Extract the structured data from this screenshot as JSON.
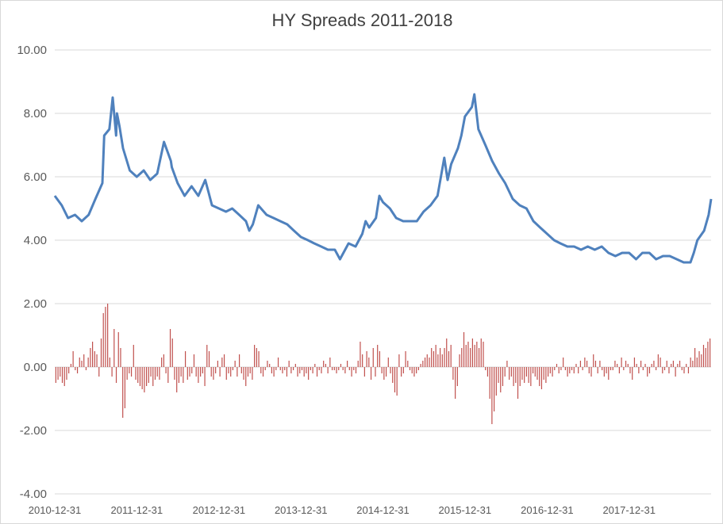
{
  "chart_data": {
    "type": "line",
    "title": "HY Spreads 2011-2018",
    "xlabel": "",
    "ylabel": "",
    "ylim": [
      -4,
      10
    ],
    "y_ticks": [
      "10.00",
      "8.00",
      "6.00",
      "4.00",
      "2.00",
      "0.00",
      "-2.00",
      "-4.00"
    ],
    "x_tick_labels": [
      "2010-12-31",
      "2011-12-31",
      "2012-12-31",
      "2013-12-31",
      "2014-12-31",
      "2015-12-31",
      "2016-12-31",
      "2017-12-31"
    ],
    "x_range": [
      "2010-12-31",
      "2018-12-31"
    ],
    "grid": "horizontal",
    "legend": "none",
    "colors": {
      "spread_line": "#4f81bd",
      "change_bars": "#c0504d",
      "grid": "#d9d9d9",
      "text": "#595959"
    },
    "series": [
      {
        "chart_type": "line",
        "x": [
          "2010-12-31",
          "2011-01-31",
          "2011-02-28",
          "2011-03-31",
          "2011-04-30",
          "2011-05-31",
          "2011-06-30",
          "2011-07-31",
          "2011-08-08",
          "2011-08-31",
          "2011-09-15",
          "2011-09-30",
          "2011-10-04",
          "2011-10-15",
          "2011-10-31",
          "2011-11-30",
          "2011-12-31",
          "2012-01-31",
          "2012-02-29",
          "2012-03-31",
          "2012-04-30",
          "2012-05-31",
          "2012-06-04",
          "2012-06-30",
          "2012-07-31",
          "2012-08-31",
          "2012-09-30",
          "2012-10-31",
          "2012-11-15",
          "2012-11-30",
          "2012-12-31",
          "2013-01-31",
          "2013-02-28",
          "2013-03-31",
          "2013-04-30",
          "2013-05-15",
          "2013-05-31",
          "2013-06-24",
          "2013-07-31",
          "2013-08-31",
          "2013-09-30",
          "2013-10-31",
          "2013-11-30",
          "2013-12-31",
          "2014-01-31",
          "2014-02-28",
          "2014-03-31",
          "2014-04-30",
          "2014-05-31",
          "2014-06-23",
          "2014-07-31",
          "2014-08-31",
          "2014-09-30",
          "2014-10-15",
          "2014-10-31",
          "2014-11-30",
          "2014-12-15",
          "2014-12-31",
          "2015-01-31",
          "2015-02-28",
          "2015-03-31",
          "2015-04-30",
          "2015-05-31",
          "2015-06-30",
          "2015-07-31",
          "2015-08-31",
          "2015-09-30",
          "2015-10-15",
          "2015-10-31",
          "2015-11-30",
          "2015-12-15",
          "2015-12-31",
          "2016-01-31",
          "2016-02-11",
          "2016-02-29",
          "2016-03-31",
          "2016-04-30",
          "2016-05-31",
          "2016-06-27",
          "2016-07-31",
          "2016-08-31",
          "2016-09-30",
          "2016-10-31",
          "2016-11-30",
          "2016-12-31",
          "2017-01-31",
          "2017-02-28",
          "2017-03-31",
          "2017-04-30",
          "2017-05-31",
          "2017-06-30",
          "2017-07-31",
          "2017-08-31",
          "2017-09-30",
          "2017-10-31",
          "2017-11-30",
          "2017-12-31",
          "2018-01-31",
          "2018-02-28",
          "2018-03-31",
          "2018-04-30",
          "2018-05-31",
          "2018-06-30",
          "2018-07-31",
          "2018-08-31",
          "2018-09-30",
          "2018-10-15",
          "2018-10-31",
          "2018-11-30",
          "2018-12-20",
          "2018-12-31"
        ],
        "values": [
          5.4,
          5.1,
          4.7,
          4.8,
          4.6,
          4.8,
          5.3,
          5.8,
          7.3,
          7.5,
          8.5,
          7.3,
          8.0,
          7.6,
          6.9,
          6.2,
          6.0,
          6.2,
          5.9,
          6.1,
          7.1,
          6.5,
          6.3,
          5.8,
          5.4,
          5.7,
          5.4,
          5.9,
          5.5,
          5.1,
          5.0,
          4.9,
          5.0,
          4.8,
          4.6,
          4.3,
          4.5,
          5.1,
          4.8,
          4.7,
          4.6,
          4.5,
          4.3,
          4.1,
          4.0,
          3.9,
          3.8,
          3.7,
          3.7,
          3.4,
          3.9,
          3.8,
          4.2,
          4.6,
          4.4,
          4.7,
          5.4,
          5.2,
          5.0,
          4.7,
          4.6,
          4.6,
          4.6,
          4.9,
          5.1,
          5.4,
          6.6,
          5.9,
          6.4,
          6.9,
          7.3,
          7.9,
          8.2,
          8.6,
          7.5,
          7.0,
          6.5,
          6.1,
          5.8,
          5.3,
          5.1,
          5.0,
          4.6,
          4.4,
          4.2,
          4.0,
          3.9,
          3.8,
          3.8,
          3.7,
          3.8,
          3.7,
          3.8,
          3.6,
          3.5,
          3.6,
          3.6,
          3.4,
          3.6,
          3.6,
          3.4,
          3.5,
          3.5,
          3.4,
          3.3,
          3.3,
          3.6,
          4.0,
          4.3,
          4.8,
          5.3
        ]
      },
      {
        "chart_type": "bar",
        "values": [
          -0.5,
          -0.4,
          -0.3,
          -0.5,
          -0.6,
          -0.4,
          -0.2,
          0.1,
          0.5,
          -0.1,
          -0.2,
          0.3,
          0.2,
          0.4,
          -0.1,
          0.3,
          0.6,
          0.8,
          0.5,
          0.4,
          -0.3,
          0.9,
          1.7,
          1.9,
          2.0,
          0.3,
          -0.3,
          1.2,
          -0.5,
          1.1,
          0.6,
          -1.6,
          -1.3,
          -0.4,
          -0.2,
          -0.3,
          0.7,
          -0.4,
          -0.5,
          -0.6,
          -0.7,
          -0.8,
          -0.6,
          -0.5,
          -0.3,
          -0.6,
          -0.4,
          -0.3,
          -0.4,
          0.3,
          0.4,
          -0.2,
          -0.5,
          1.2,
          0.9,
          -0.4,
          -0.8,
          -0.5,
          -0.3,
          -0.5,
          0.5,
          -0.4,
          -0.3,
          -0.2,
          0.4,
          -0.3,
          -0.5,
          -0.3,
          -0.2,
          -0.6,
          0.7,
          0.5,
          -0.3,
          -0.4,
          -0.2,
          0.2,
          -0.3,
          0.3,
          0.4,
          -0.4,
          -0.2,
          -0.3,
          -0.1,
          0.2,
          -0.3,
          0.4,
          -0.2,
          -0.4,
          -0.6,
          -0.3,
          -0.2,
          -0.4,
          0.7,
          0.6,
          0.5,
          -0.2,
          -0.3,
          -0.1,
          0.2,
          0.1,
          -0.2,
          -0.3,
          -0.1,
          0.3,
          -0.1,
          -0.2,
          -0.1,
          -0.3,
          0.2,
          -0.2,
          -0.1,
          0.1,
          -0.3,
          -0.2,
          -0.1,
          -0.3,
          -0.2,
          -0.4,
          -0.1,
          -0.2,
          0.1,
          -0.3,
          -0.1,
          -0.2,
          0.2,
          0.1,
          -0.2,
          0.3,
          -0.1,
          -0.1,
          -0.2,
          -0.1,
          0.1,
          -0.1,
          -0.2,
          0.2,
          -0.1,
          -0.3,
          -0.1,
          -0.2,
          0.2,
          0.8,
          0.4,
          -0.3,
          0.5,
          0.3,
          -0.4,
          0.6,
          -0.3,
          0.7,
          0.5,
          -0.2,
          -0.4,
          -0.3,
          0.3,
          -0.2,
          -0.5,
          -0.8,
          -0.9,
          0.4,
          -0.3,
          -0.2,
          0.5,
          0.2,
          -0.1,
          -0.2,
          -0.3,
          -0.2,
          -0.1,
          0.1,
          0.2,
          0.3,
          0.4,
          0.3,
          0.6,
          0.5,
          0.7,
          0.4,
          0.6,
          0.4,
          0.6,
          0.9,
          0.5,
          0.7,
          -0.4,
          -1.0,
          -0.6,
          0.4,
          0.6,
          1.1,
          0.7,
          0.8,
          0.6,
          0.9,
          0.7,
          0.8,
          0.6,
          0.9,
          0.8,
          -0.1,
          -0.3,
          -1.0,
          -1.8,
          -1.4,
          -0.9,
          -0.5,
          -0.8,
          -0.6,
          -0.3,
          0.2,
          -0.4,
          -0.3,
          -0.6,
          -0.5,
          -1.0,
          -0.6,
          -0.4,
          -0.5,
          -0.3,
          -0.5,
          -0.6,
          -0.2,
          -0.3,
          -0.4,
          -0.6,
          -0.7,
          -0.4,
          -0.5,
          -0.3,
          -0.2,
          -0.3,
          -0.1,
          0.1,
          -0.2,
          -0.1,
          0.3,
          -0.1,
          -0.3,
          -0.2,
          -0.1,
          -0.2,
          0.1,
          -0.2,
          0.2,
          -0.1,
          0.3,
          0.2,
          -0.2,
          -0.3,
          0.4,
          0.2,
          -0.2,
          0.2,
          -0.1,
          -0.3,
          -0.2,
          -0.4,
          -0.1,
          -0.1,
          0.2,
          0.1,
          -0.2,
          0.3,
          -0.1,
          0.2,
          0.1,
          -0.2,
          -0.4,
          0.3,
          0.1,
          -0.2,
          0.2,
          -0.1,
          0.1,
          -0.3,
          -0.2,
          0.1,
          0.2,
          -0.1,
          0.4,
          0.3,
          -0.2,
          -0.1,
          0.2,
          -0.2,
          0.1,
          0.2,
          -0.3,
          0.1,
          0.2,
          -0.1,
          -0.2,
          0.1,
          -0.2,
          0.3,
          0.2,
          0.6,
          0.3,
          0.5,
          0.4,
          0.7,
          0.6,
          0.8,
          0.9
        ]
      }
    ]
  }
}
